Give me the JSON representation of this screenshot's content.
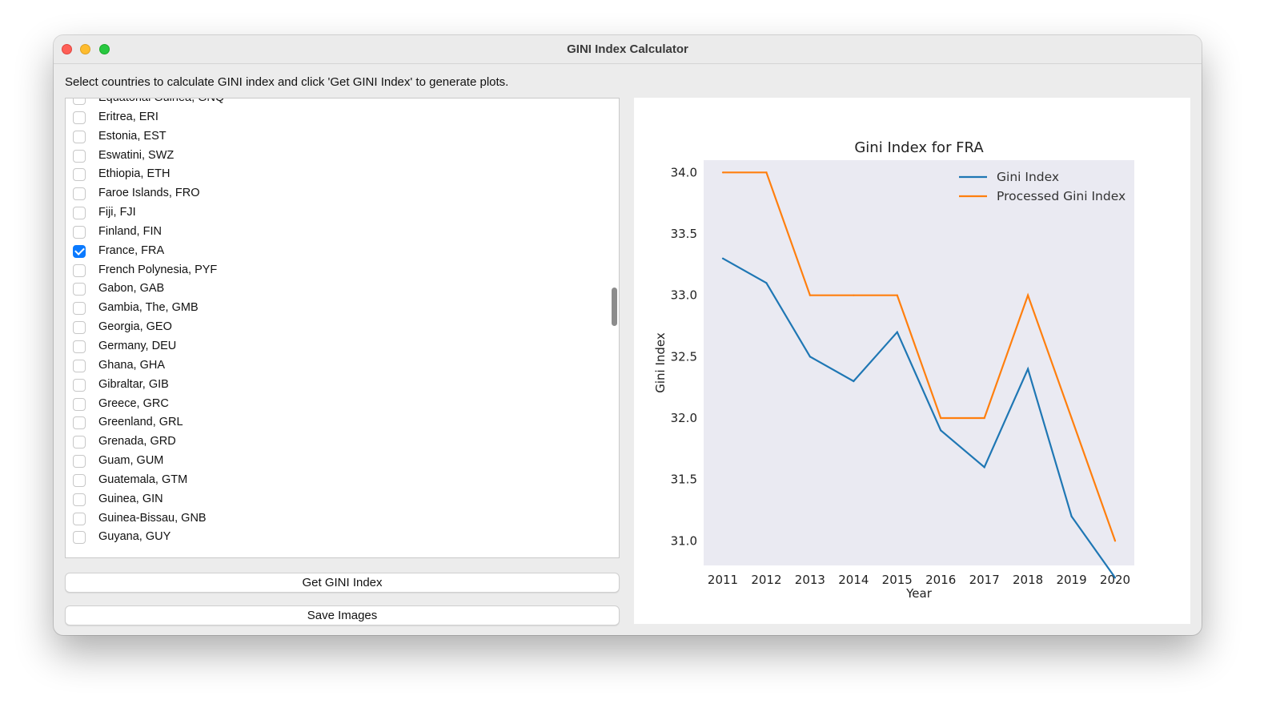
{
  "window": {
    "title": "GINI Index Calculator"
  },
  "instructions": "Select countries to calculate GINI index and click 'Get GINI Index' to generate plots.",
  "countries": [
    {
      "label": "Equatorial Guinea, GNQ",
      "checked": false
    },
    {
      "label": "Eritrea, ERI",
      "checked": false
    },
    {
      "label": "Estonia, EST",
      "checked": false
    },
    {
      "label": "Eswatini, SWZ",
      "checked": false
    },
    {
      "label": "Ethiopia, ETH",
      "checked": false
    },
    {
      "label": "Faroe Islands, FRO",
      "checked": false
    },
    {
      "label": "Fiji, FJI",
      "checked": false
    },
    {
      "label": "Finland, FIN",
      "checked": false
    },
    {
      "label": "France, FRA",
      "checked": true
    },
    {
      "label": "French Polynesia, PYF",
      "checked": false
    },
    {
      "label": "Gabon, GAB",
      "checked": false
    },
    {
      "label": "Gambia, The, GMB",
      "checked": false
    },
    {
      "label": "Georgia, GEO",
      "checked": false
    },
    {
      "label": "Germany, DEU",
      "checked": false
    },
    {
      "label": "Ghana, GHA",
      "checked": false
    },
    {
      "label": "Gibraltar, GIB",
      "checked": false
    },
    {
      "label": "Greece, GRC",
      "checked": false
    },
    {
      "label": "Greenland, GRL",
      "checked": false
    },
    {
      "label": "Grenada, GRD",
      "checked": false
    },
    {
      "label": "Guam, GUM",
      "checked": false
    },
    {
      "label": "Guatemala, GTM",
      "checked": false
    },
    {
      "label": "Guinea, GIN",
      "checked": false
    },
    {
      "label": "Guinea-Bissau, GNB",
      "checked": false
    },
    {
      "label": "Guyana, GUY",
      "checked": false
    }
  ],
  "buttons": {
    "get_gini": "Get GINI Index",
    "save_images": "Save Images"
  },
  "chart_data": {
    "type": "line",
    "title": "Gini Index for FRA",
    "xlabel": "Year",
    "ylabel": "Gini Index",
    "x": [
      2011,
      2012,
      2013,
      2014,
      2015,
      2016,
      2017,
      2018,
      2019,
      2020
    ],
    "x_tick_labels": [
      "2011",
      "2012",
      "2013",
      "2014",
      "2015",
      "2016",
      "2017",
      "2018",
      "2019",
      "2020"
    ],
    "y_ticks": [
      31.0,
      31.5,
      32.0,
      32.5,
      33.0,
      33.5,
      34.0
    ],
    "y_tick_labels": [
      "31.0",
      "31.5",
      "32.0",
      "32.5",
      "33.0",
      "33.5",
      "34.0"
    ],
    "ylim": [
      30.8,
      34.1
    ],
    "grid": false,
    "legend_position": "upper right",
    "background": "#eaeaf2",
    "series": [
      {
        "name": "Gini Index",
        "color": "#1f77b4",
        "values": [
          33.3,
          33.1,
          32.5,
          32.3,
          32.7,
          31.9,
          31.6,
          32.4,
          31.2,
          30.7
        ]
      },
      {
        "name": "Processed Gini Index",
        "color": "#ff7f0e",
        "values": [
          34.0,
          34.0,
          33.0,
          33.0,
          33.0,
          32.0,
          32.0,
          33.0,
          32.0,
          31.0
        ]
      }
    ]
  }
}
